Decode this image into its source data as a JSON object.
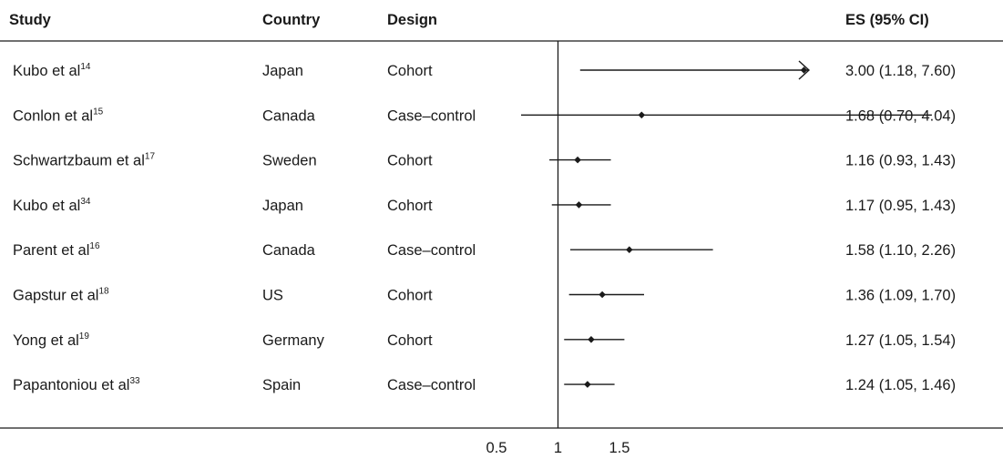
{
  "headers": {
    "study": "Study",
    "country": "Country",
    "design": "Design",
    "es": "ES (95% CI)"
  },
  "rows": [
    {
      "study": "Kubo et al",
      "ref": "14",
      "country": "Japan",
      "design": "Cohort",
      "es_label": "3.00 (1.18, 7.60)"
    },
    {
      "study": "Conlon et al",
      "ref": "15",
      "country": "Canada",
      "design": "Case–control",
      "es_label": "1.68 (0.70, 4.04)"
    },
    {
      "study": "Schwartzbaum et al",
      "ref": "17",
      "country": "Sweden",
      "design": "Cohort",
      "es_label": "1.16 (0.93, 1.43)"
    },
    {
      "study": "Kubo et al",
      "ref": "34",
      "country": "Japan",
      "design": "Cohort",
      "es_label": "1.17 (0.95, 1.43)"
    },
    {
      "study": "Parent et al",
      "ref": "16",
      "country": "Canada",
      "design": "Case–control",
      "es_label": "1.58 (1.10, 2.26)"
    },
    {
      "study": "Gapstur et al",
      "ref": "18",
      "country": "US",
      "design": "Cohort",
      "es_label": "1.36 (1.09, 1.70)"
    },
    {
      "study": "Yong et al",
      "ref": "19",
      "country": "Germany",
      "design": "Cohort",
      "es_label": "1.27 (1.05, 1.54)"
    },
    {
      "study": "Papantoniou et al",
      "ref": "33",
      "country": "Spain",
      "design": "Case–control",
      "es_label": "1.24 (1.05, 1.46)"
    }
  ],
  "chart_data": {
    "type": "forest",
    "reference_line": 1,
    "x_ticks": [
      0.5,
      1,
      1.5
    ],
    "x_tick_labels": [
      "0.5",
      "1",
      "1.5"
    ],
    "xlim": [
      0.5,
      1.5
    ],
    "estimates": [
      3.0,
      1.68,
      1.16,
      1.17,
      1.58,
      1.36,
      1.27,
      1.24
    ],
    "ci_lower": [
      1.18,
      0.7,
      0.93,
      0.95,
      1.1,
      1.09,
      1.05,
      1.05
    ],
    "ci_upper": [
      7.6,
      4.04,
      1.43,
      1.43,
      2.26,
      1.7,
      1.54,
      1.46
    ],
    "truncated_upper_arrow": [
      true,
      false,
      false,
      false,
      false,
      false,
      false,
      false
    ]
  }
}
